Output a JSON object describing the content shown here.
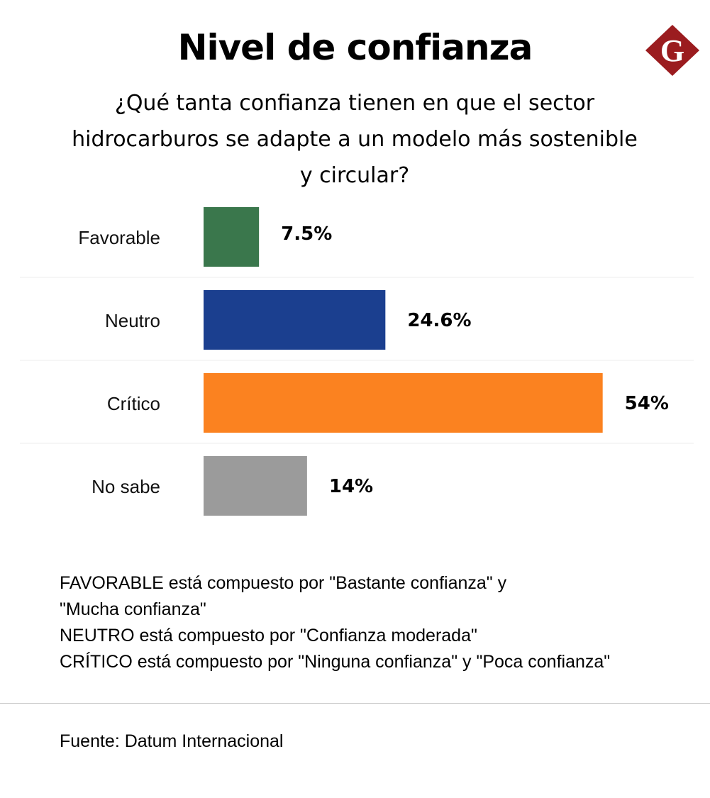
{
  "header": {
    "title": "Nivel de confianza",
    "subtitle": "¿Qué tanta confianza tienen en que el sector hidrocarburos se adapte a un modelo más sostenible y circular?",
    "logo_letter": "G",
    "logo_color": "#9b1c1f"
  },
  "chart_data": {
    "type": "bar",
    "orientation": "horizontal",
    "categories": [
      "Favorable",
      "Neutro",
      "Crítico",
      "No sabe"
    ],
    "values": [
      7.5,
      24.6,
      54,
      14
    ],
    "value_labels": [
      "7.5%",
      "24.6%",
      "54%",
      "14%"
    ],
    "colors": [
      "#3a774c",
      "#1b3f8f",
      "#fb8220",
      "#9b9b9b"
    ],
    "title": "",
    "xlabel": "",
    "ylabel": "",
    "grid": false
  },
  "notes": [
    "FAVORABLE está compuesto por \"Bastante confianza\" y",
    "\"Mucha confianza\"",
    "NEUTRO está compuesto por \"Confianza moderada\"",
    "CRÍTICO está compuesto por \"Ninguna confianza\" y \"Poca confianza\""
  ],
  "source": "Fuente:  Datum Internacional"
}
